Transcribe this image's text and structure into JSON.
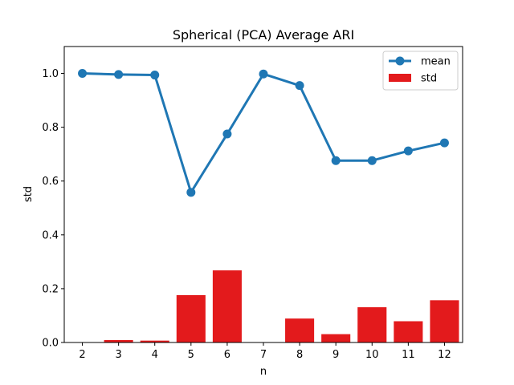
{
  "chart_data": {
    "type": "bar+line",
    "title": "Spherical (PCA) Average ARI",
    "xlabel": "n",
    "ylabel": "std",
    "categories": [
      "2",
      "3",
      "4",
      "5",
      "6",
      "7",
      "8",
      "9",
      "10",
      "11",
      "12"
    ],
    "ylim": [
      0.0,
      1.1
    ],
    "yticks": [
      "0.0",
      "0.2",
      "0.4",
      "0.6",
      "0.8",
      "1.0"
    ],
    "series": [
      {
        "name": "mean",
        "type": "line",
        "color": "#1f77b4",
        "values": [
          1.0,
          0.996,
          0.994,
          0.558,
          0.775,
          0.998,
          0.955,
          0.676,
          0.676,
          0.712,
          0.742
        ]
      },
      {
        "name": "std",
        "type": "bar",
        "color": "#e31a1c",
        "values": [
          0.0,
          0.009,
          0.007,
          0.176,
          0.268,
          0.0,
          0.089,
          0.031,
          0.131,
          0.079,
          0.157
        ]
      }
    ],
    "legend_position": "top-right",
    "grid": false
  }
}
